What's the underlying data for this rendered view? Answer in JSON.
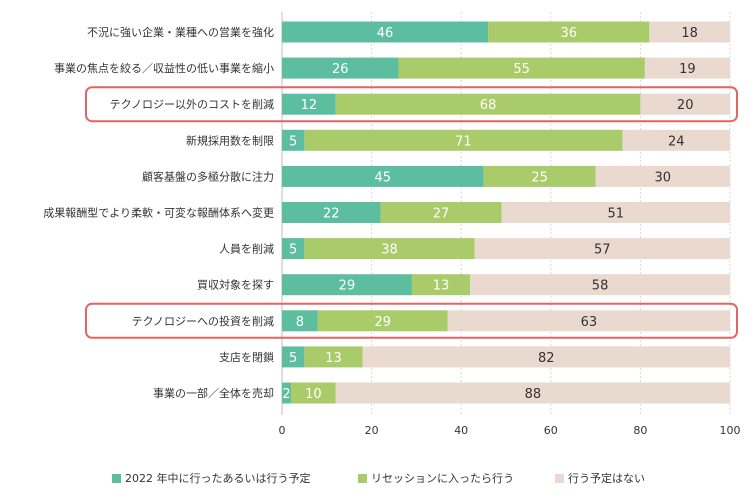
{
  "chart_data": {
    "type": "bar",
    "orientation": "horizontal",
    "stacked": true,
    "categories": [
      "不況に強い企業・業種への営業を強化",
      "事業の焦点を絞る／収益性の低い事業を縮小",
      "テクノロジー以外のコストを削減",
      "新規採用数を制限",
      "顧客基盤の多極分散に注力",
      "成果報酬型でより柔軟・可変な報酬体系へ変更",
      "人員を削減",
      "買収対象を探す",
      "テクノロジーへの投資を削減",
      "支店を閉鎖",
      "事業の一部／全体を売却"
    ],
    "series": [
      {
        "name": "2022 年中に行ったあるいは行う予定",
        "color": "#5dbe9f",
        "label_color": "#ffffff",
        "values": [
          46,
          26,
          12,
          5,
          45,
          22,
          5,
          29,
          8,
          5,
          2
        ]
      },
      {
        "name": "リセッションに入ったら行う",
        "color": "#a9cb6a",
        "label_color": "#ffffff",
        "values": [
          36,
          55,
          68,
          71,
          25,
          27,
          38,
          13,
          29,
          13,
          10
        ]
      },
      {
        "name": "行う予定はない",
        "color": "#ead9cf",
        "label_color": "#333333",
        "values": [
          18,
          19,
          20,
          24,
          30,
          51,
          57,
          58,
          63,
          82,
          88
        ]
      }
    ],
    "highlighted_categories": [
      "テクノロジー以外のコストを削減",
      "テクノロジーへの投資を削減"
    ],
    "highlight_color": "#e06666",
    "xlim": [
      0,
      100
    ],
    "xticks": [
      "0",
      "20",
      "40",
      "60",
      "80",
      "100"
    ],
    "grid": true,
    "legend_position": "bottom"
  }
}
